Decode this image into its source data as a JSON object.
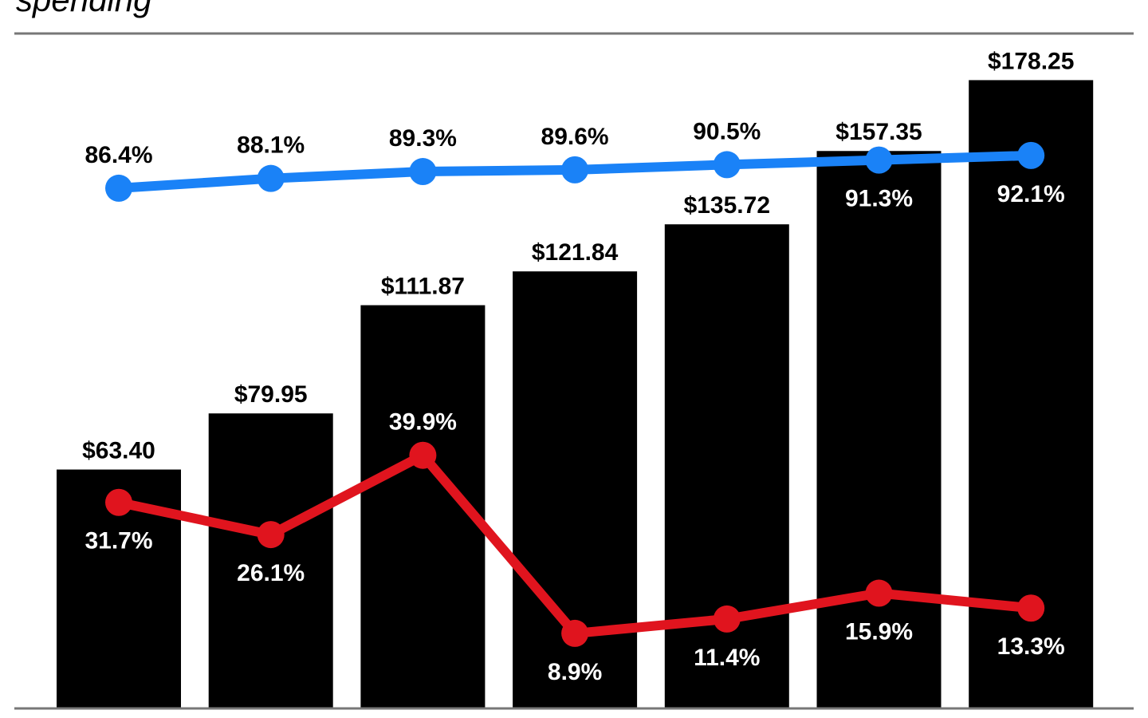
{
  "chart_data": {
    "type": "bar",
    "title": "spending",
    "categories": [
      null,
      null,
      null,
      null,
      null,
      null,
      null
    ],
    "series": [
      {
        "type": "bar",
        "color": "#000000",
        "values": [
          63.4,
          79.95,
          111.87,
          121.84,
          135.72,
          157.35,
          178.25
        ],
        "value_labels": [
          "$63.40",
          "$79.95",
          "$111.87",
          "$121.84",
          "$135.72",
          "$157.35",
          "$178.25"
        ]
      },
      {
        "type": "line",
        "axis": "y2",
        "color": "#1a82f7",
        "values": [
          86.4,
          88.1,
          89.3,
          89.6,
          90.5,
          91.3,
          92.1
        ],
        "value_labels": [
          "86.4%",
          "88.1%",
          "89.3%",
          "89.6%",
          "90.5%",
          "91.3%",
          "92.1%"
        ]
      },
      {
        "type": "line",
        "axis": "y2",
        "color": "#e0141e",
        "values": [
          31.7,
          26.1,
          39.9,
          8.9,
          11.4,
          15.9,
          13.3
        ],
        "value_labels": [
          "31.7%",
          "26.1%",
          "39.9%",
          "8.9%",
          "11.4%",
          "15.9%",
          "13.3%"
        ]
      }
    ]
  }
}
